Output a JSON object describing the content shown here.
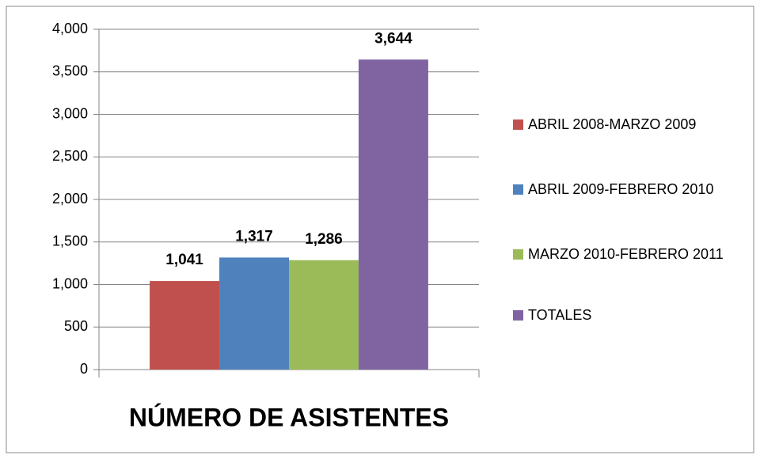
{
  "chart_data": {
    "type": "bar",
    "categories": [
      "NÚMERO DE ASISTENTES"
    ],
    "series": [
      {
        "name": "ABRIL 2008-MARZO 2009",
        "color": "#c0504d",
        "values": [
          1041
        ],
        "value_labels": [
          "1,041"
        ]
      },
      {
        "name": "ABRIL 2009-FEBRERO 2010",
        "color": "#4f81bd",
        "values": [
          1317
        ],
        "value_labels": [
          "1,317"
        ]
      },
      {
        "name": "MARZO 2010-FEBRERO 2011",
        "color": "#9bbb59",
        "values": [
          1286
        ],
        "value_labels": [
          "1,286"
        ]
      },
      {
        "name": "TOTALES",
        "color": "#8064a2",
        "values": [
          3644
        ],
        "value_labels": [
          "3,644"
        ]
      }
    ],
    "ylim": [
      0,
      4000
    ],
    "yticks": [
      0,
      500,
      {
        "value": 1000,
        "label": "1,000"
      },
      {
        "value": 1500,
        "label": "1,500"
      },
      {
        "value": 2000,
        "label": "2,000"
      },
      {
        "value": 2500,
        "label": "2,500"
      },
      {
        "value": 3000,
        "label": "3,000"
      },
      {
        "value": 3500,
        "label": "3,500"
      },
      {
        "value": 4000,
        "label": "4,000"
      }
    ],
    "grid": true,
    "legend": "right"
  }
}
